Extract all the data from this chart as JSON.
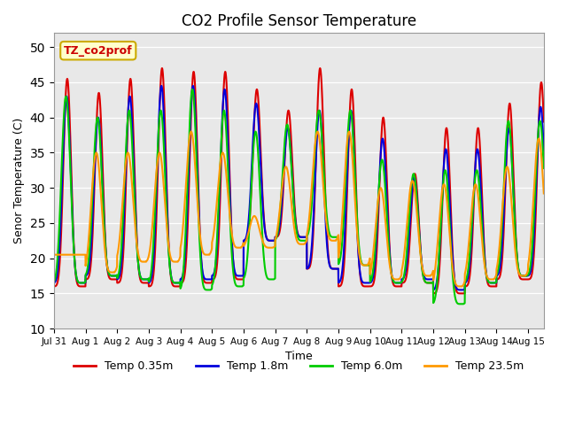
{
  "title": "CO2 Profile Sensor Temperature",
  "xlabel": "Time",
  "ylabel": "Senor Temperature (C)",
  "ylim": [
    10,
    52
  ],
  "yticks": [
    10,
    15,
    20,
    25,
    30,
    35,
    40,
    45,
    50
  ],
  "background_color": "#e8e8e8",
  "annotation_text": "TZ_co2prof",
  "annotation_bg": "#ffffcc",
  "annotation_border": "#ccaa00",
  "annotation_color": "#cc0000",
  "series": {
    "Temp 0.35m": {
      "color": "#dd0000",
      "linewidth": 1.5
    },
    "Temp 1.8m": {
      "color": "#0000dd",
      "linewidth": 1.5
    },
    "Temp 6.0m": {
      "color": "#00cc00",
      "linewidth": 1.5
    },
    "Temp 23.5m": {
      "color": "#ff9900",
      "linewidth": 1.5
    }
  },
  "xtick_dates": [
    "Jul 31",
    "Aug 1",
    "Aug 2",
    "Aug 3",
    "Aug 4",
    "Aug 5",
    "Aug 6",
    "Aug 7",
    "Aug 8",
    "Aug 9",
    "Aug 10",
    "Aug 11",
    "Aug 12",
    "Aug 13",
    "Aug 14",
    "Aug 15"
  ],
  "peaks_035": [
    45.5,
    43.5,
    45.5,
    47.0,
    46.5,
    46.5,
    44.0,
    41.0,
    47.0,
    44.0,
    40.0,
    32.0,
    38.5,
    38.5,
    42.0,
    45.0,
    47.0
  ],
  "peaks_18": [
    43.0,
    40.0,
    43.0,
    44.5,
    44.5,
    44.0,
    42.0,
    38.5,
    41.0,
    41.0,
    37.0,
    31.5,
    35.5,
    35.5,
    38.5,
    41.5,
    44.0
  ],
  "peaks_60": [
    43.0,
    40.0,
    41.0,
    41.0,
    44.0,
    41.0,
    38.0,
    39.0,
    41.0,
    41.0,
    34.0,
    32.0,
    32.5,
    32.5,
    39.5,
    39.5,
    41.0
  ],
  "peaks_235": [
    20.5,
    35.0,
    35.0,
    35.0,
    38.0,
    35.0,
    26.0,
    33.0,
    38.0,
    38.0,
    30.0,
    31.0,
    30.5,
    30.5,
    33.0,
    37.0,
    39.0
  ],
  "troughs_035": [
    16.0,
    17.0,
    16.5,
    16.0,
    16.5,
    17.0,
    22.5,
    23.0,
    18.5,
    16.0,
    16.0,
    16.5,
    15.0,
    16.0,
    17.0,
    17.0,
    17.0
  ],
  "troughs_18": [
    16.5,
    17.5,
    17.0,
    16.5,
    17.0,
    17.5,
    22.5,
    23.0,
    18.5,
    16.5,
    16.5,
    17.0,
    15.5,
    16.5,
    17.5,
    17.5,
    17.5
  ],
  "troughs_60": [
    16.5,
    17.5,
    17.0,
    16.5,
    15.5,
    16.0,
    17.0,
    22.5,
    23.0,
    19.0,
    16.5,
    16.5,
    13.5,
    16.5,
    17.5,
    17.5,
    17.5
  ],
  "troughs_235": [
    20.5,
    18.0,
    19.5,
    19.5,
    20.5,
    21.5,
    21.5,
    22.0,
    22.5,
    19.0,
    17.0,
    17.5,
    16.0,
    17.0,
    17.5,
    18.0,
    18.0
  ]
}
